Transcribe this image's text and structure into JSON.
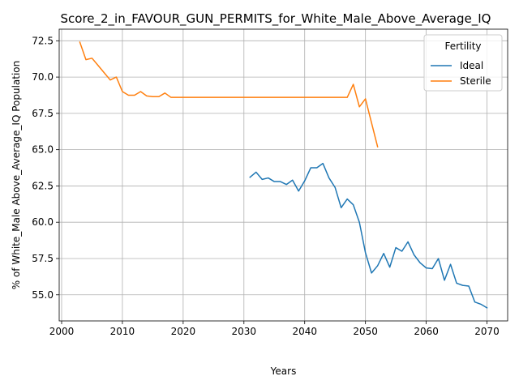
{
  "chart_data": {
    "type": "line",
    "title": "Score_2_in_FAVOUR_GUN_PERMITS_for_White_Male_Above_Average_IQ",
    "xlabel": "Years",
    "ylabel": "% of White_Male Above_Average_IQ Population",
    "xlim": [
      1999.6,
      2073.4
    ],
    "ylim": [
      53.2,
      73.3
    ],
    "xticks": [
      2000,
      2010,
      2020,
      2030,
      2040,
      2050,
      2060,
      2070
    ],
    "yticks": [
      55.0,
      57.5,
      60.0,
      62.5,
      65.0,
      67.5,
      70.0,
      72.5
    ],
    "xtick_labels": [
      "2000",
      "2010",
      "2020",
      "2030",
      "2040",
      "2050",
      "2060",
      "2070"
    ],
    "ytick_labels": [
      "55.0",
      "57.5",
      "60.0",
      "62.5",
      "65.0",
      "67.5",
      "70.0",
      "72.5"
    ],
    "grid": true,
    "legend": {
      "title": "Fertility",
      "placement": "top-right"
    },
    "series": [
      {
        "name": "Ideal",
        "color": "#1f77b4",
        "x": [
          2031,
          2032,
          2033,
          2034,
          2035,
          2036,
          2037,
          2038,
          2039,
          2040,
          2041,
          2042,
          2043,
          2044,
          2045,
          2046,
          2047,
          2048,
          2049,
          2050,
          2051,
          2052,
          2053,
          2054,
          2055,
          2056,
          2057,
          2058,
          2059,
          2060,
          2061,
          2062,
          2063,
          2064,
          2065,
          2066,
          2067,
          2068,
          2069,
          2070
        ],
        "values": [
          63.1,
          63.45,
          62.95,
          63.05,
          62.8,
          62.8,
          62.6,
          62.9,
          62.15,
          62.85,
          63.75,
          63.75,
          64.05,
          63.05,
          62.4,
          61.0,
          61.6,
          61.2,
          60.0,
          57.9,
          56.5,
          57.0,
          57.85,
          56.9,
          58.25,
          58.0,
          58.65,
          57.75,
          57.2,
          56.85,
          56.8,
          57.5,
          56.0,
          57.1,
          55.8,
          55.65,
          55.6,
          54.5,
          54.35,
          54.1
        ]
      },
      {
        "name": "Sterile",
        "color": "#ff7f0e",
        "x": [
          2003,
          2004,
          2005,
          2006,
          2007,
          2008,
          2009,
          2010,
          2011,
          2012,
          2013,
          2014,
          2015,
          2016,
          2017,
          2018,
          2019,
          2020,
          2021,
          2022,
          2023,
          2024,
          2025,
          2026,
          2027,
          2028,
          2029,
          2030,
          2031,
          2032,
          2033,
          2034,
          2035,
          2036,
          2037,
          2038,
          2039,
          2040,
          2041,
          2042,
          2043,
          2044,
          2045,
          2046,
          2047,
          2048,
          2049,
          2050,
          2051,
          2052
        ],
        "values": [
          72.4,
          71.2,
          71.3,
          70.8,
          70.3,
          69.8,
          70.0,
          69.0,
          68.75,
          68.75,
          69.0,
          68.7,
          68.65,
          68.65,
          68.9,
          68.6,
          68.6,
          68.6,
          68.6,
          68.6,
          68.6,
          68.6,
          68.6,
          68.6,
          68.6,
          68.6,
          68.6,
          68.6,
          68.6,
          68.6,
          68.6,
          68.6,
          68.6,
          68.6,
          68.6,
          68.6,
          68.6,
          68.6,
          68.6,
          68.6,
          68.6,
          68.6,
          68.6,
          68.6,
          68.6,
          69.5,
          67.95,
          68.5,
          66.85,
          65.2
        ]
      }
    ]
  }
}
